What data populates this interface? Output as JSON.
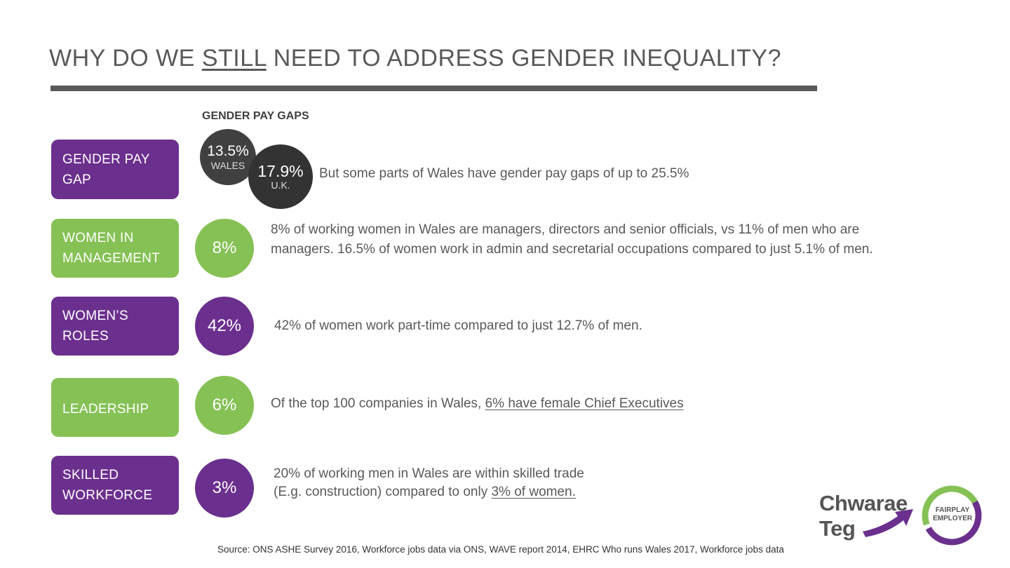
{
  "title": {
    "part1": "WHY DO WE ",
    "underlined": "STILL",
    "part2": " NEED TO ADDRESS GENDER INEQUALITY?"
  },
  "pay_gaps": {
    "heading": "GENDER PAY GAPS",
    "wales": {
      "value": "13.5%",
      "label": "WALES"
    },
    "uk": {
      "value": "17.9%",
      "label": "U.K."
    },
    "note": "But some parts of Wales have gender pay gaps of up to 25.5%"
  },
  "rows": [
    {
      "label": "GENDER PAY GAP",
      "color": "#6b2f8e"
    },
    {
      "label": "WOMEN IN MANAGEMENT",
      "color": "#85c155",
      "stat": "8%",
      "text": "8% of working women in Wales are managers, directors and senior officials, vs 11% of men who are managers. 16.5% of women work in admin and secretarial occupations compared to just 5.1% of men."
    },
    {
      "label": "WOMEN’S ROLES",
      "color": "#6b2f8e",
      "stat": "42%",
      "text": "42% of women work part-time compared to just 12.7% of men."
    },
    {
      "label": "LEADERSHIP",
      "color": "#85c155",
      "stat": "6%",
      "text_plain": "Of the top 100 companies in Wales, ",
      "text_underlined": "6% have female Chief Executives"
    },
    {
      "label": "SKILLED WORKFORCE",
      "color": "#6b2f8e",
      "stat": "3%",
      "text_line1": "20% of working men in Wales are within skilled trade",
      "text_line2_plain": "(E.g. construction) compared to only ",
      "text_line2_underlined": "3% of women."
    }
  ],
  "source": "Source: ONS ASHE Survey 2016, Workforce jobs data via ONS, WAVE report 2014, EHRC Who runs Wales 2017, Workforce jobs data",
  "logo": {
    "line1": "Chwarae",
    "line2": "Teg",
    "badge_line1": "FAIRPLAY",
    "badge_line2": "EMPLOYER"
  }
}
